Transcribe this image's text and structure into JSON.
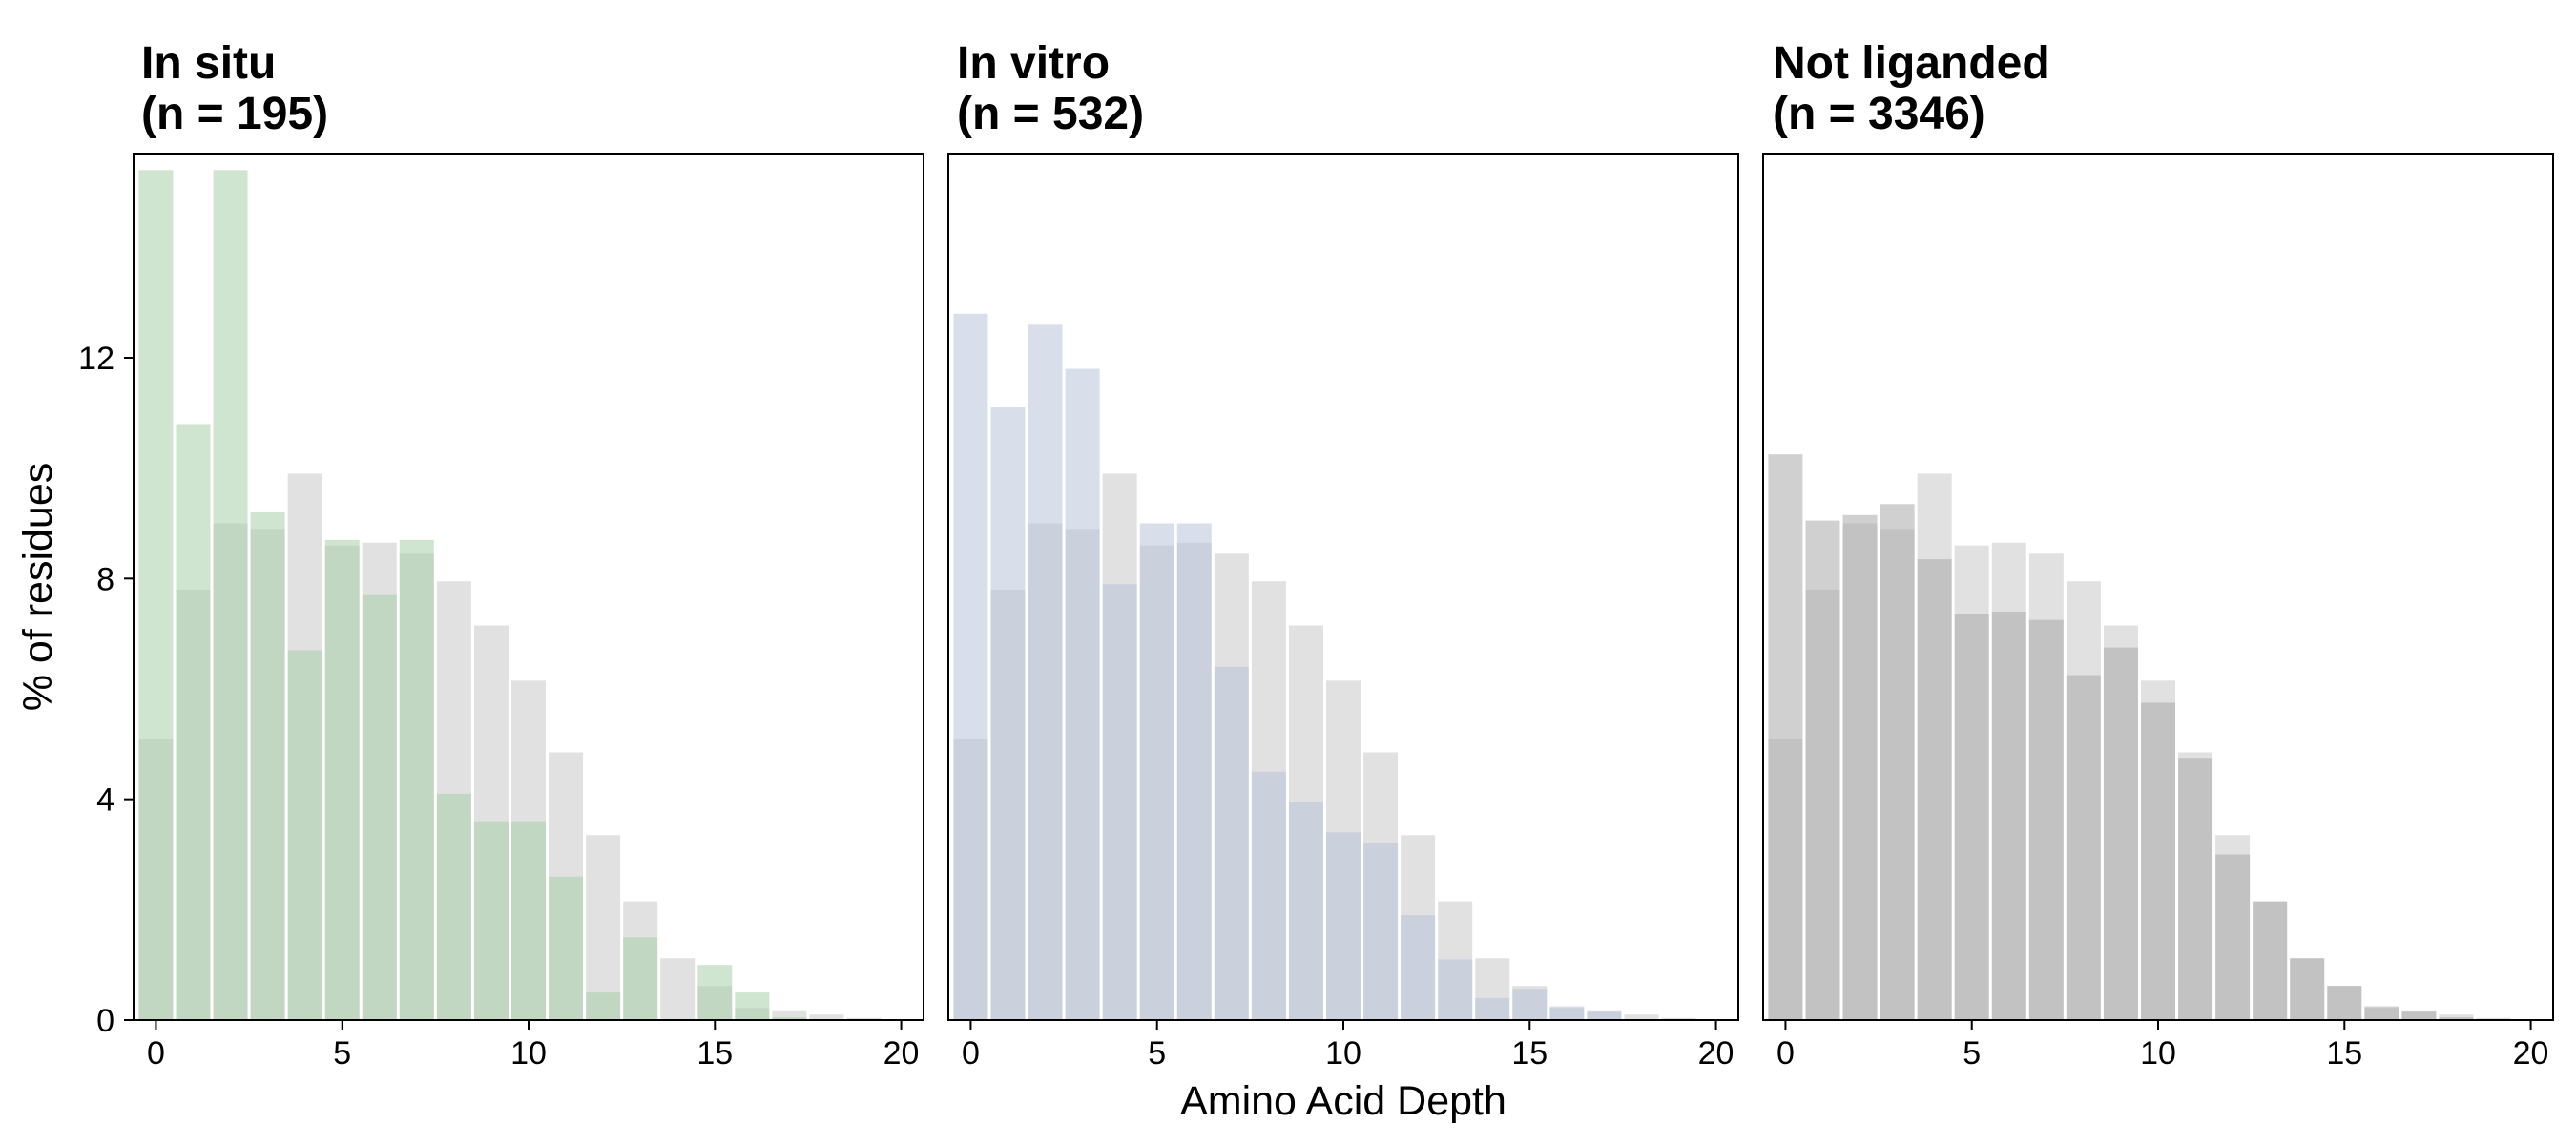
{
  "chart_data": {
    "type": "bar",
    "xlabel": "Amino Acid Depth",
    "ylabel": "% of residues",
    "xlim": [
      -0.6,
      20.6
    ],
    "ylim": [
      0,
      15.7
    ],
    "x_ticks": [
      0,
      5,
      10,
      15,
      20
    ],
    "y_ticks": [
      0,
      4,
      8,
      12
    ],
    "x": [
      0,
      1,
      2,
      3,
      4,
      5,
      6,
      7,
      8,
      9,
      10,
      11,
      12,
      13,
      14,
      15,
      16,
      17,
      18,
      19,
      20
    ],
    "background_series": {
      "color": "#c8c8c8",
      "values": [
        5.1,
        7.8,
        9.0,
        8.9,
        9.9,
        8.6,
        8.65,
        8.45,
        7.95,
        7.15,
        6.15,
        4.85,
        3.35,
        2.15,
        1.12,
        0.62,
        0.22,
        0.16,
        0.1,
        0.04,
        0.0
      ]
    },
    "panels": [
      {
        "title_line1": "In situ",
        "title_line2": "(n = 195)",
        "color": "#a9cfa9",
        "values": [
          15.4,
          10.8,
          15.4,
          9.2,
          6.7,
          8.7,
          7.7,
          8.7,
          4.1,
          3.6,
          3.6,
          2.6,
          0.5,
          1.5,
          0.0,
          1.0,
          0.5,
          0.05,
          0.0,
          0.0,
          0.0
        ]
      },
      {
        "title_line1": "In vitro",
        "title_line2": "(n = 532)",
        "color": "#b9c4d9",
        "values": [
          12.8,
          11.1,
          12.6,
          11.8,
          7.9,
          9.0,
          9.0,
          6.4,
          4.5,
          3.95,
          3.4,
          3.2,
          1.9,
          1.1,
          0.4,
          0.55,
          0.25,
          0.15,
          0.0,
          0.0,
          0.0
        ]
      },
      {
        "title_line1": "Not liganded",
        "title_line2": "(n = 3346)",
        "color": "#a9a9a9",
        "values": [
          10.25,
          9.05,
          9.15,
          9.35,
          8.35,
          7.35,
          7.4,
          7.25,
          6.25,
          6.75,
          5.75,
          4.75,
          3.0,
          2.15,
          1.12,
          0.62,
          0.25,
          0.15,
          0.05,
          0.0,
          0.0
        ]
      }
    ]
  }
}
